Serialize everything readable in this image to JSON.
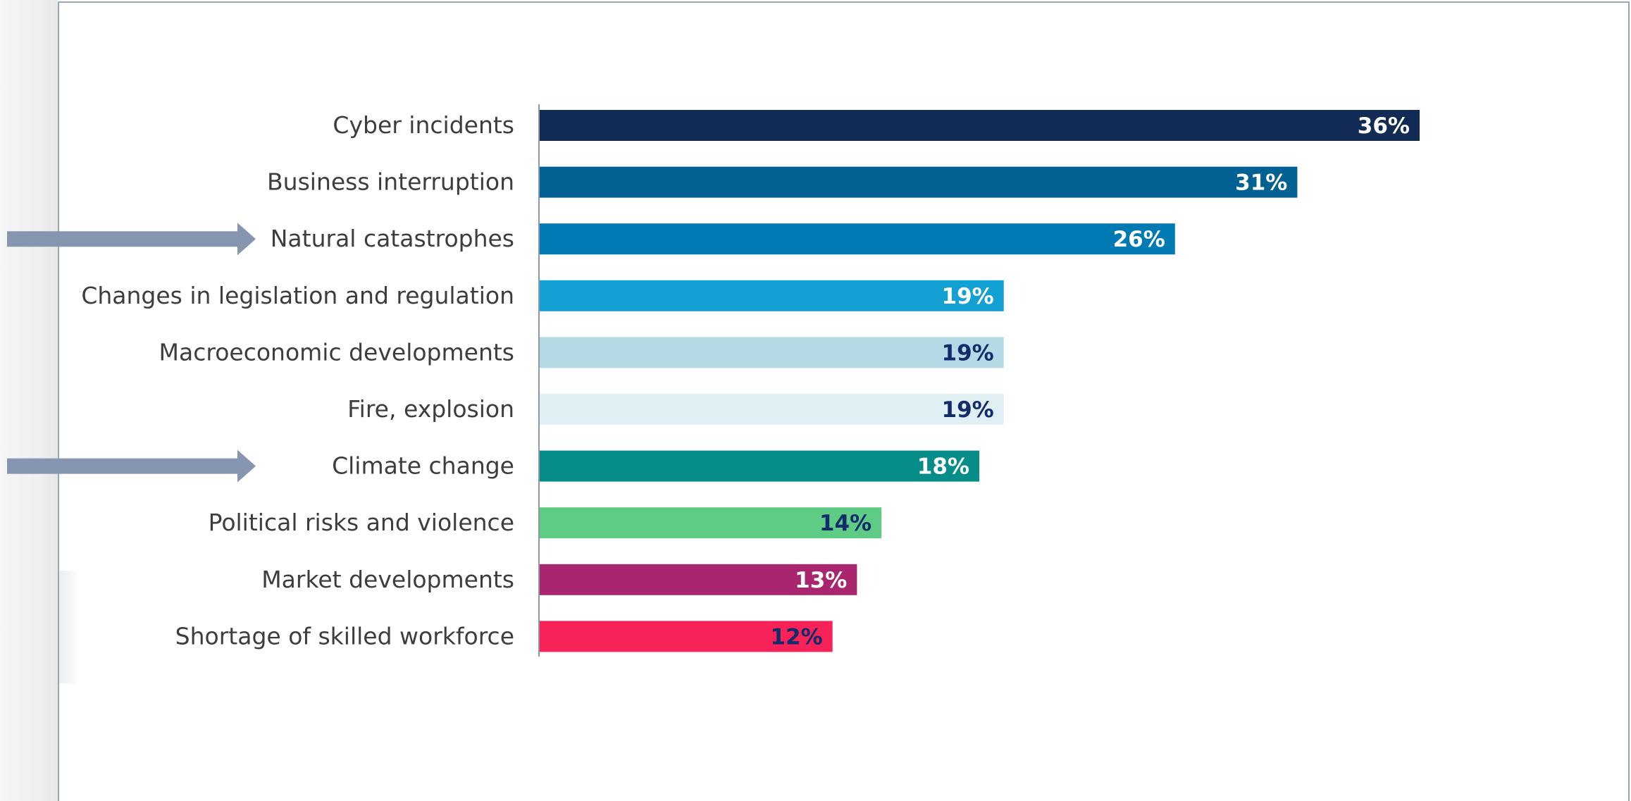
{
  "chart_data": {
    "type": "bar",
    "orientation": "horizontal",
    "unit": "%",
    "categories": [
      "Cyber incidents",
      "Business interruption",
      "Natural catastrophes",
      "Changes in legislation and regulation",
      "Macroeconomic developments",
      "Fire, explosion",
      "Climate change",
      "Political risks and violence",
      "Market developments",
      "Shortage of skilled workforce"
    ],
    "values": [
      36,
      31,
      26,
      19,
      19,
      19,
      18,
      14,
      13,
      12
    ],
    "value_labels": [
      "36%",
      "31%",
      "26%",
      "19%",
      "19%",
      "19%",
      "18%",
      "14%",
      "13%",
      "12%"
    ],
    "bar_colors": [
      "#122b54",
      "#006192",
      "#007ab3",
      "#13a0d3",
      "#b5dae5",
      "#e0eff4",
      "#068d8a",
      "#5fcc86",
      "#a9256e",
      "#f72257"
    ],
    "label_colors": [
      "#ffffff",
      "#ffffff",
      "#ffffff",
      "#ffffff",
      "#122b6b",
      "#122b6b",
      "#ffffff",
      "#122b6b",
      "#ffffff",
      "#122b6b"
    ],
    "highlighted": [
      "Natural catastrophes",
      "Climate change"
    ],
    "arrow_color": "#8796b0",
    "axis_color": "#8c98aa",
    "xlim": [
      0,
      36
    ],
    "title": "",
    "xlabel": "",
    "ylabel": "",
    "grid": false,
    "legend": "none"
  }
}
